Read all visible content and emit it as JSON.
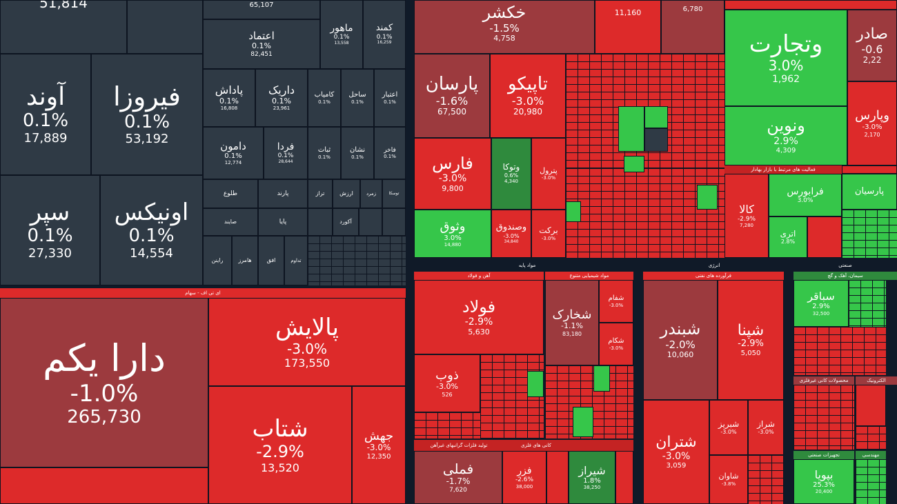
{
  "colors": {
    "gray": "#2f3a45",
    "red": "#dd2a2a",
    "dark_red": "#9c3a3e",
    "green": "#36c64a",
    "background": "#101a28"
  },
  "tiles": [
    {
      "name": "",
      "percent": "",
      "value": "51,814"
    },
    {
      "name": "",
      "percent": "",
      "value": "65,107"
    },
    {
      "name": "ماهور",
      "percent": "0.1%",
      "value": "13,558"
    },
    {
      "name": "کمند",
      "percent": "0.1%",
      "value": "16,259"
    },
    {
      "name": "اعتماد",
      "percent": "0.1%",
      "value": "82,451"
    },
    {
      "name": "آوند",
      "percent": "0.1%",
      "value": "17,889"
    },
    {
      "name": "فیروزا",
      "percent": "0.1%",
      "value": "53,192"
    },
    {
      "name": "پاداش",
      "percent": "0.1%",
      "value": "16,808"
    },
    {
      "name": "داریک",
      "percent": "0.1%",
      "value": "23,961"
    },
    {
      "name": "کامیاب",
      "percent": "0.1%",
      "value": ""
    },
    {
      "name": "ساحل",
      "percent": "0.1%",
      "value": ""
    },
    {
      "name": "اعتبار",
      "percent": "0.1%",
      "value": ""
    },
    {
      "name": "دامون",
      "percent": "0.1%",
      "value": "12,774"
    },
    {
      "name": "فردا",
      "percent": "0.1%",
      "value": "28,644"
    },
    {
      "name": "ثبات",
      "percent": "0.1%",
      "value": ""
    },
    {
      "name": "نشان",
      "percent": "0.1%",
      "value": ""
    },
    {
      "name": "فاخر",
      "percent": "0.1%",
      "value": ""
    },
    {
      "name": "سپر",
      "percent": "0.1%",
      "value": "27,330"
    },
    {
      "name": "اونیکس",
      "percent": "0.1%",
      "value": "14,554"
    },
    {
      "name": "طلوع",
      "percent": "",
      "value": ""
    },
    {
      "name": "پارند",
      "percent": "",
      "value": ""
    },
    {
      "name": "تراز",
      "percent": "",
      "value": ""
    },
    {
      "name": "ارزش",
      "percent": "",
      "value": ""
    },
    {
      "name": "زمرد",
      "percent": "",
      "value": ""
    },
    {
      "name": "توسکا",
      "percent": "",
      "value": ""
    },
    {
      "name": "صایند",
      "percent": "",
      "value": ""
    },
    {
      "name": "پایا",
      "percent": "",
      "value": ""
    },
    {
      "name": "آکورد",
      "percent": "",
      "value": ""
    },
    {
      "name": "راینن",
      "percent": "",
      "value": ""
    },
    {
      "name": "هامرز",
      "percent": "",
      "value": ""
    },
    {
      "name": "افق",
      "percent": "",
      "value": ""
    },
    {
      "name": "تداوم",
      "percent": "",
      "value": ""
    },
    {
      "name": "دارا یکم",
      "percent": "-1.0%",
      "value": "265,730"
    },
    {
      "name": "پالایش",
      "percent": "-3.0%",
      "value": "173,550"
    },
    {
      "name": "شتاب",
      "percent": "-2.9%",
      "value": "13,520"
    },
    {
      "name": "جهش",
      "percent": "-3.0%",
      "value": "12,350"
    },
    {
      "name": "خکشر",
      "percent": "-1.5%",
      "value": "4,758"
    },
    {
      "name": "",
      "percent": "",
      "value": "11,160"
    },
    {
      "name": "",
      "percent": "",
      "value": "6,780"
    },
    {
      "name": "وتجارت",
      "percent": "3.0%",
      "value": "1,962"
    },
    {
      "name": "صادر",
      "percent": "-0.6",
      "value": "2,22"
    },
    {
      "name": "پارسان",
      "percent": "-1.6%",
      "value": "67,500"
    },
    {
      "name": "تاپیکو",
      "percent": "-3.0%",
      "value": "20,980"
    },
    {
      "name": "ونوین",
      "percent": "2.9%",
      "value": "4,309"
    },
    {
      "name": "وپارس",
      "percent": "-3.0%",
      "value": "2,170"
    },
    {
      "name": "فارس",
      "percent": "-3.0%",
      "value": "9,800"
    },
    {
      "name": "وتوکا",
      "percent": "0.6%",
      "value": "4,340"
    },
    {
      "name": "پترول",
      "percent": "-3.0%",
      "value": ""
    },
    {
      "name": "کالا",
      "percent": "-2.9%",
      "value": "7,280"
    },
    {
      "name": "فرابورس",
      "percent": "3.0%",
      "value": ""
    },
    {
      "name": "پارسیان",
      "percent": "",
      "value": ""
    },
    {
      "name": "وثوق",
      "percent": "3.0%",
      "value": "14,880"
    },
    {
      "name": "وصندوق",
      "percent": "-3.0%",
      "value": "34,840"
    },
    {
      "name": "برکت",
      "percent": "-3.0%",
      "value": ""
    },
    {
      "name": "اتری",
      "percent": "2.8%",
      "value": ""
    },
    {
      "name": "فولاد",
      "percent": "-2.9%",
      "value": "5,630"
    },
    {
      "name": "شخارک",
      "percent": "-1.1%",
      "value": "83,180"
    },
    {
      "name": "شبندر",
      "percent": "-2.0%",
      "value": "10,060"
    },
    {
      "name": "شپنا",
      "percent": "-2.9%",
      "value": "5,050"
    },
    {
      "name": "سباقر",
      "percent": "2.9%",
      "value": "32,500"
    },
    {
      "name": "شفام",
      "percent": "-3.0%",
      "value": ""
    },
    {
      "name": "شکام",
      "percent": "-3.0%",
      "value": ""
    },
    {
      "name": "ذوب",
      "percent": "-3.0%",
      "value": "526"
    },
    {
      "name": "شتران",
      "percent": "-3.0%",
      "value": "3,059"
    },
    {
      "name": "شبریز",
      "percent": "-3.0%",
      "value": ""
    },
    {
      "name": "شراز",
      "percent": "-3.0%",
      "value": ""
    },
    {
      "name": "شاوان",
      "percent": "-3.8%",
      "value": ""
    },
    {
      "name": "فملی",
      "percent": "-1.7%",
      "value": "7,620"
    },
    {
      "name": "فزر",
      "percent": "-2.6%",
      "value": "38,000"
    },
    {
      "name": "شیراز",
      "percent": "1.8%",
      "value": "38,250"
    },
    {
      "name": "بپویا",
      "percent": "25.3%",
      "value": "20,400"
    },
    {
      "name": "وتجارت_dup",
      "percent": "",
      "value": ""
    }
  ],
  "headers": [
    "ای تی اف - سهام",
    "مواد پایه",
    "آهن و فولاد",
    "مواد شیمیایی متنوع",
    "انرژی",
    "فرآورده های نفتی",
    "صنعتی",
    "سیمان، آهک و گچ",
    "کانی های فلزی",
    "تولید فلزات گرانبهای غیرآهن",
    "فعالیت های مرتبط با بازار بهادار",
    "تجهیزات صنعتی",
    "محصولات کانی غیرفلزی",
    "الکترونیک",
    "مهندسی"
  ]
}
